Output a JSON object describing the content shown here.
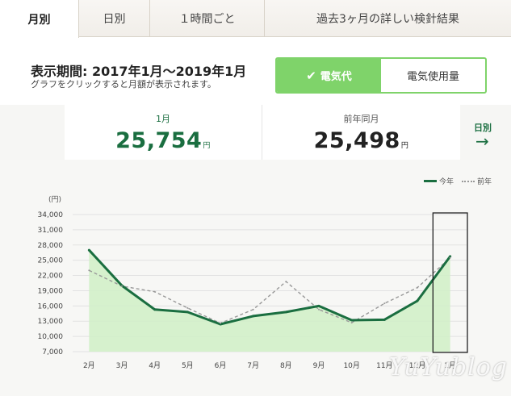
{
  "tabs": [
    {
      "label": "月別",
      "active": true
    },
    {
      "label": "日別",
      "active": false
    },
    {
      "label": "１時間ごと",
      "active": false
    },
    {
      "label": "過去3ヶ月の詳しい検針結果",
      "active": false
    }
  ],
  "period": {
    "title": "表示期間: 2017年1月〜2019年1月",
    "hint": "グラフをクリックすると月額が表示されます。"
  },
  "toggle": {
    "charge_label": "電気代",
    "usage_label": "電気使用量",
    "selected": "charge"
  },
  "summary": {
    "current_label": "1月",
    "current_value": "25,754",
    "prev_label": "前年同月",
    "prev_value": "25,498",
    "unit": "円"
  },
  "daily_link": "日別",
  "colors": {
    "accent": "#1a6e40",
    "toggle_on": "#7fd36a",
    "area_fill": "#d2efc9",
    "prev_line": "#999999"
  },
  "watermark": "YuYublog",
  "chart_data": {
    "type": "area",
    "categories": [
      "2月",
      "3月",
      "4月",
      "5月",
      "6月",
      "7月",
      "8月",
      "9月",
      "10月",
      "11月",
      "12月",
      "1月"
    ],
    "ylabel": "(円)",
    "ylim": [
      7000,
      34000
    ],
    "yticks": [
      7000,
      10000,
      13000,
      16000,
      19000,
      22000,
      25000,
      28000,
      31000,
      34000
    ],
    "grid": true,
    "legend_position": "top-right",
    "highlight_index": 11,
    "series": [
      {
        "name": "今年",
        "style": "solid",
        "values": [
          27000,
          20000,
          15300,
          14800,
          12400,
          14000,
          14800,
          16000,
          13200,
          13300,
          17000,
          25754
        ]
      },
      {
        "name": "前年",
        "style": "dashed",
        "values": [
          23000,
          19900,
          18800,
          15600,
          12600,
          15300,
          20800,
          15300,
          12700,
          16500,
          19600,
          25498
        ]
      }
    ]
  }
}
